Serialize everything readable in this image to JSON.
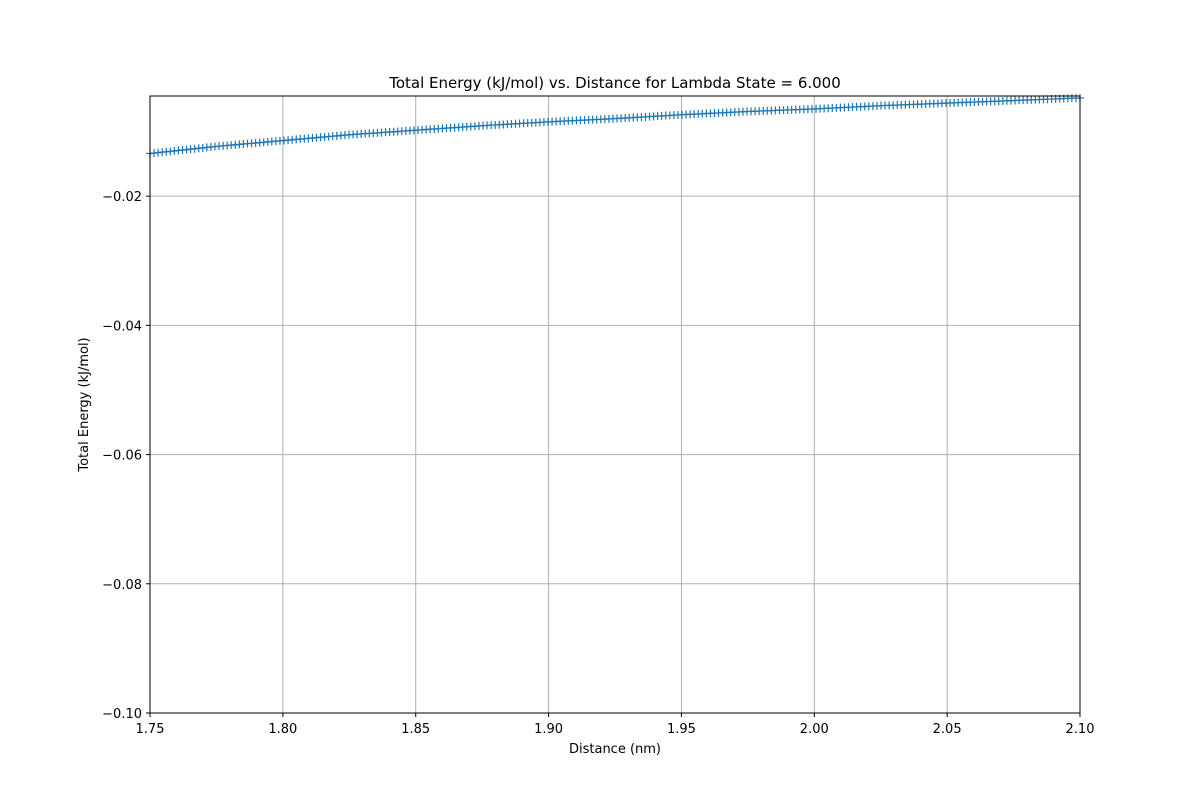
{
  "chart_data": {
    "type": "scatter",
    "title": "Total Energy (kJ/mol) vs. Distance for Lambda State = 6.000",
    "xlabel": "Distance (nm)",
    "ylabel": "Total Energy (kJ/mol)",
    "xlim": [
      1.75,
      2.1
    ],
    "ylim": [
      -0.1,
      -0.0045
    ],
    "xticks": [
      1.75,
      1.8,
      1.85,
      1.9,
      1.95,
      2.0,
      2.05,
      2.1
    ],
    "xtick_labels": [
      "1.75",
      "1.80",
      "1.85",
      "1.90",
      "1.95",
      "2.00",
      "2.05",
      "2.10"
    ],
    "yticks": [
      -0.1,
      -0.08,
      -0.06,
      -0.04,
      -0.02
    ],
    "ytick_labels": [
      "−0.10",
      "−0.08",
      "−0.06",
      "−0.04",
      "−0.02"
    ],
    "grid": true,
    "marker": "+",
    "color": "#1f77b4",
    "series": [
      {
        "x": [
          1.75,
          1.775,
          1.8,
          1.825,
          1.85,
          1.875,
          1.9,
          1.925,
          1.95,
          1.975,
          2.0,
          2.025,
          2.05,
          2.075,
          2.1
        ],
        "y": [
          -0.0134,
          -0.0123,
          -0.0114,
          -0.0105,
          -0.0098,
          -0.0091,
          -0.0085,
          -0.008,
          -0.0074,
          -0.0069,
          -0.0065,
          -0.006,
          -0.0056,
          -0.0052,
          -0.0048
        ]
      }
    ]
  }
}
